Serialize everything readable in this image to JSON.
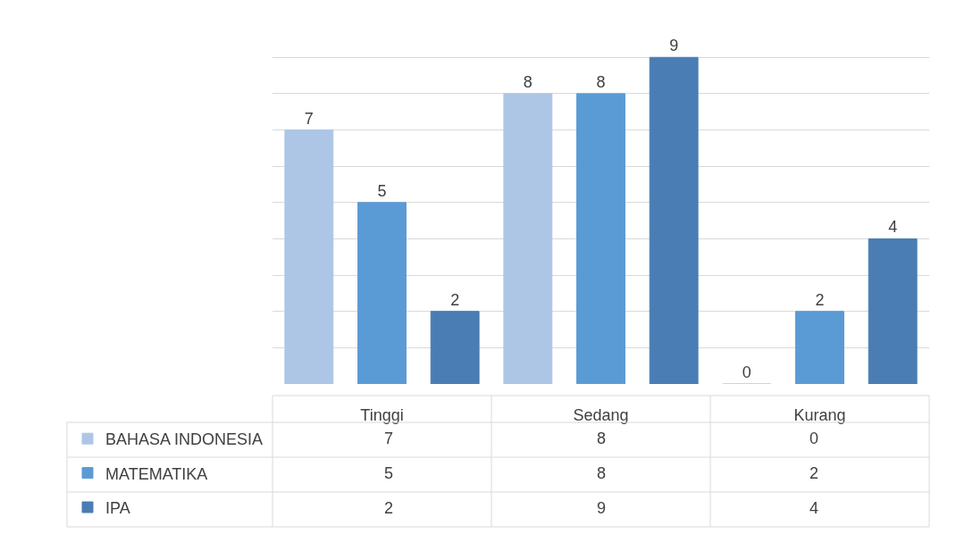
{
  "chart_data": {
    "type": "bar",
    "categories": [
      "Tinggi",
      "Sedang",
      "Kurang"
    ],
    "series": [
      {
        "name": "BAHASA INDONESIA",
        "color": "#aec6e6",
        "values": [
          7,
          8,
          0
        ],
        "value_labels": [
          "7",
          "8",
          "0"
        ]
      },
      {
        "name": "MATEMATIKA",
        "color": "#5b9bd5",
        "values": [
          5,
          8,
          2
        ],
        "value_labels": [
          "5",
          "8",
          "2"
        ]
      },
      {
        "name": "IPA",
        "color": "#4a7db3",
        "values": [
          2,
          9,
          4
        ],
        "value_labels": [
          "2",
          "9",
          "4"
        ]
      }
    ],
    "annotations": [
      "7",
      "8",
      "0",
      "5",
      "8",
      "2",
      "2",
      "9",
      "4"
    ],
    "grid": "y",
    "tick_labels": "x",
    "legend": "bottom left"
  }
}
